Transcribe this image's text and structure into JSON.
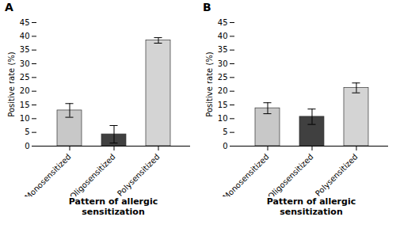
{
  "chart_data": [
    {
      "type": "bar",
      "title": "A",
      "categories": [
        "Monosensitized",
        "Oligosensitized",
        "Polysensitized"
      ],
      "values": [
        13.0,
        4.3,
        38.5
      ],
      "errors": [
        2.5,
        3.2,
        1.0
      ],
      "colors": [
        "#c8c8c8",
        "#404040",
        "#d4d4d4"
      ],
      "xlabel": "Pattern of allergic\nsensitization",
      "ylabel": "Positive rate (%)",
      "ylim": [
        0,
        45
      ],
      "yticks": [
        0,
        5,
        10,
        15,
        20,
        25,
        30,
        35,
        40,
        45
      ],
      "grid": false
    },
    {
      "type": "bar",
      "title": "B",
      "categories": [
        "Monosensitized",
        "Oligosensitized",
        "Polysensitized"
      ],
      "values": [
        13.8,
        10.7,
        21.2
      ],
      "errors": [
        2.0,
        2.8,
        1.8
      ],
      "colors": [
        "#c8c8c8",
        "#404040",
        "#d4d4d4"
      ],
      "xlabel": "Pattern of allergic\nsensitization",
      "ylabel": "Positive rate (%)",
      "ylim": [
        0,
        45
      ],
      "yticks": [
        0,
        5,
        10,
        15,
        20,
        25,
        30,
        35,
        40,
        45
      ],
      "grid": false
    }
  ]
}
